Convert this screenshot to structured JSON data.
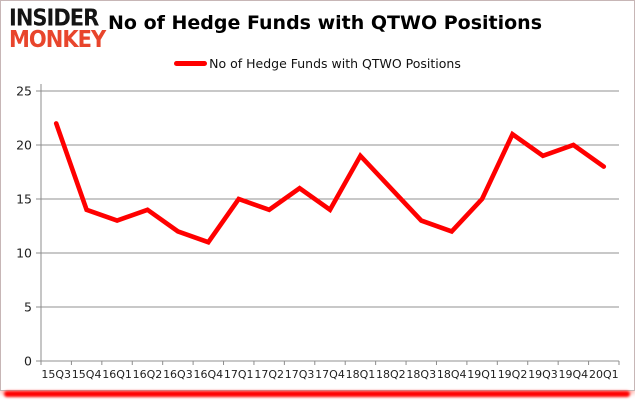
{
  "header": {
    "logo_line1": "INSIDER",
    "logo_line2": "MONKEY",
    "title": "No of Hedge Funds with QTWO Positions"
  },
  "legend": {
    "label": "No of Hedge Funds with QTWO Positions"
  },
  "colors": {
    "line": "#ff0000",
    "grid": "#909090",
    "axis": "#8c8c8c",
    "axis_text": "#1f1f1f",
    "logo_black": "#141414",
    "logo_red": "#e8452c",
    "accent_red": "#ff0000"
  },
  "chart_data": {
    "type": "line",
    "title": "No of Hedge Funds with QTWO Positions",
    "categories": [
      "15Q3",
      "15Q4",
      "16Q1",
      "16Q2",
      "16Q3",
      "16Q4",
      "17Q1",
      "17Q2",
      "17Q3",
      "17Q4",
      "18Q1",
      "18Q2",
      "18Q3",
      "18Q4",
      "19Q1",
      "19Q2",
      "19Q3",
      "19Q4",
      "20Q1"
    ],
    "series": [
      {
        "name": "No of Hedge Funds with QTWO Positions",
        "values": [
          22,
          14,
          13,
          14,
          12,
          11,
          15,
          14,
          16,
          14,
          19,
          16,
          13,
          12,
          15,
          21,
          19,
          20,
          18
        ]
      }
    ],
    "xlabel": "",
    "ylabel": "",
    "ylim": [
      0,
      25
    ],
    "yticks": [
      0,
      5,
      10,
      15,
      20,
      25
    ],
    "grid": true,
    "legend_position": "top-center"
  }
}
